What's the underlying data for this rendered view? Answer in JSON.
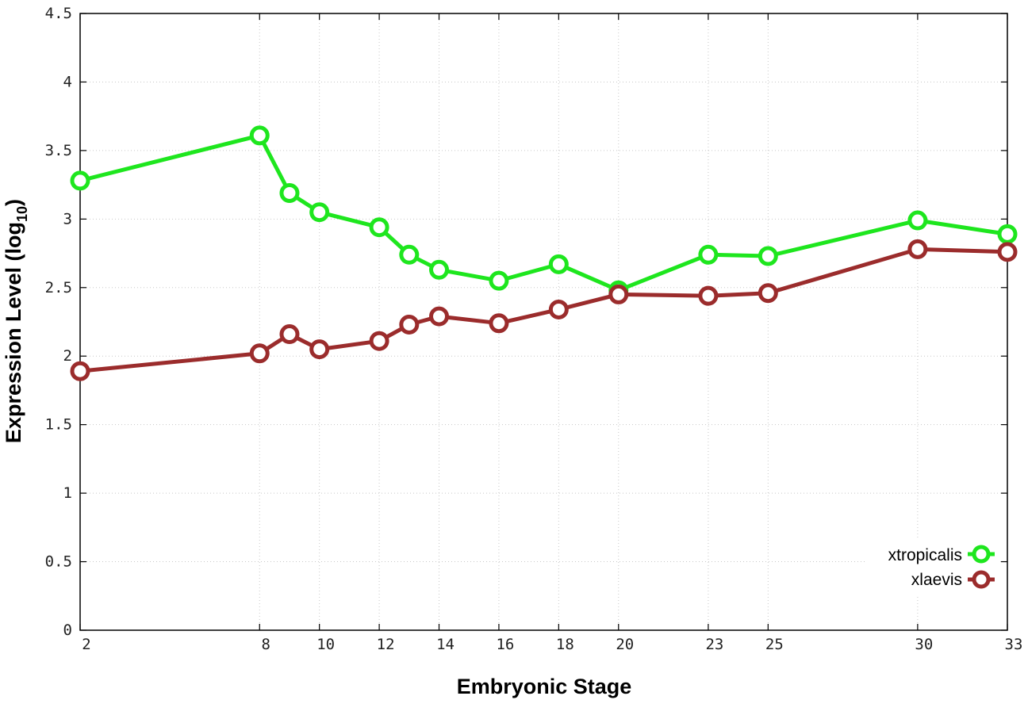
{
  "chart_data": {
    "type": "line",
    "xlabel": "Embryonic Stage",
    "ylabel_main": "Expression Level (log",
    "ylabel_sub": "10",
    "ylabel_close": ")",
    "x_ticks": [
      "2",
      "8",
      "10",
      "12",
      "14",
      "16",
      "18",
      "20",
      "23",
      "25",
      "30",
      "33"
    ],
    "x_tick_values": [
      2,
      8,
      10,
      12,
      14,
      16,
      18,
      20,
      23,
      25,
      30,
      33
    ],
    "y_ticks": [
      "0",
      "0.5",
      "1",
      "1.5",
      "2",
      "2.5",
      "3",
      "3.5",
      "4",
      "4.5"
    ],
    "y_tick_values": [
      0,
      0.5,
      1,
      1.5,
      2,
      2.5,
      3,
      3.5,
      4,
      4.5
    ],
    "xlim": [
      2,
      33
    ],
    "ylim": [
      0,
      4.5
    ],
    "grid": true,
    "legend_position": "bottom-right",
    "x": [
      2,
      8,
      9,
      10,
      12,
      13,
      14,
      16,
      18,
      20,
      23,
      25,
      30,
      33
    ],
    "series": [
      {
        "name": "xtropicalis",
        "color": "#1ee61e",
        "values": [
          3.28,
          3.61,
          3.19,
          3.05,
          2.94,
          2.74,
          2.63,
          2.55,
          2.67,
          2.48,
          2.74,
          2.73,
          2.99,
          2.89
        ]
      },
      {
        "name": "xlaevis",
        "color": "#9b2c2c",
        "values": [
          1.89,
          2.02,
          2.16,
          2.05,
          2.11,
          2.23,
          2.29,
          2.24,
          2.34,
          2.45,
          2.44,
          2.46,
          2.78,
          2.76
        ]
      }
    ]
  }
}
